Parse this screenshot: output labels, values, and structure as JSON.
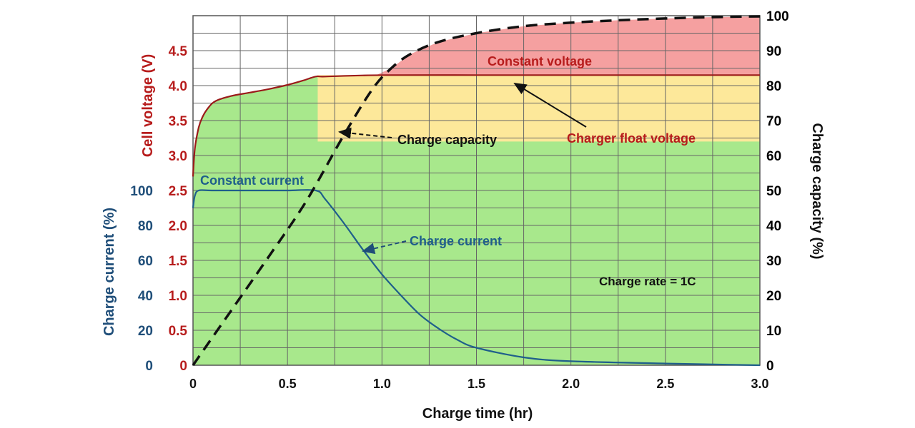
{
  "chart_data": {
    "type": "line",
    "xlabel": "Charge time (hr)",
    "xlim": [
      0,
      3.0
    ],
    "x_ticks": [
      "0",
      "0.5",
      "1.0",
      "1.5",
      "2.0",
      "2.5",
      "3.0"
    ],
    "axes": {
      "voltage": {
        "label": "Cell voltage (V)",
        "ylim": [
          0,
          5.0
        ],
        "ticks": [
          "0",
          "0.5",
          "1.0",
          "1.5",
          "2.0",
          "2.5",
          "3.0",
          "3.5",
          "4.0",
          "4.5"
        ],
        "color": "#b71c1c"
      },
      "current": {
        "label": "Charge current (%)",
        "ylim": [
          0,
          200
        ],
        "ticks": [
          "0",
          "20",
          "40",
          "60",
          "80",
          "100"
        ],
        "color": "#1f4e79"
      },
      "capacity": {
        "label": "Charge capacity (%)",
        "ylim": [
          0,
          100
        ],
        "ticks": [
          "0",
          "10",
          "20",
          "30",
          "40",
          "50",
          "60",
          "70",
          "80",
          "90",
          "100"
        ],
        "color": "#000000"
      }
    },
    "grid": true,
    "regions": [
      {
        "name": "Charging area",
        "color": "#a8e88c"
      },
      {
        "name": "Float voltage band",
        "color": "#fde89a"
      },
      {
        "name": "Constant voltage",
        "color": "#f5a0a0"
      }
    ],
    "series": [
      {
        "name": "Cell voltage",
        "axis": "voltage",
        "color": "#9b1b1b",
        "style": "solid",
        "x": [
          0,
          0.01,
          0.03,
          0.05,
          0.08,
          0.12,
          0.2,
          0.3,
          0.4,
          0.5,
          0.58,
          0.65,
          0.7,
          1.0,
          1.5,
          2.0,
          2.5,
          3.0
        ],
        "y": [
          2.7,
          3.1,
          3.4,
          3.55,
          3.68,
          3.78,
          3.85,
          3.9,
          3.95,
          4.01,
          4.07,
          4.13,
          4.13,
          4.15,
          4.15,
          4.15,
          4.15,
          4.15
        ]
      },
      {
        "name": "Charge current",
        "axis": "current",
        "color": "#1f5f8b",
        "style": "solid",
        "x": [
          0,
          0.01,
          0.03,
          0.1,
          0.3,
          0.5,
          0.65,
          0.7,
          0.8,
          0.9,
          1.0,
          1.1,
          1.2,
          1.3,
          1.4,
          1.5,
          1.75,
          2.0,
          2.5,
          3.0
        ],
        "y": [
          90,
          97,
          100,
          100,
          100,
          100,
          100,
          95,
          81,
          66,
          52,
          40,
          29,
          21,
          14.5,
          10,
          4.5,
          2.3,
          1,
          0
        ]
      },
      {
        "name": "Charge capacity",
        "axis": "capacity",
        "color": "#111111",
        "style": "dashed",
        "x": [
          0,
          0.2,
          0.4,
          0.6,
          0.8,
          0.95,
          1.05,
          1.15,
          1.3,
          1.5,
          1.75,
          2.0,
          2.25,
          2.5,
          2.75,
          3.0
        ],
        "y": [
          0,
          15.5,
          31,
          47,
          66,
          79,
          85,
          89,
          92.5,
          95,
          97,
          98,
          98.7,
          99.2,
          99.6,
          99.8
        ]
      }
    ],
    "annotations": {
      "constant_voltage": "Constant voltage",
      "constant_current": "Constant current",
      "charge_capacity": "Charge capacity",
      "charger_float_voltage": "Charger float voltage",
      "charge_current": "Charge current",
      "charge_rate": "Charge rate = 1C"
    }
  }
}
